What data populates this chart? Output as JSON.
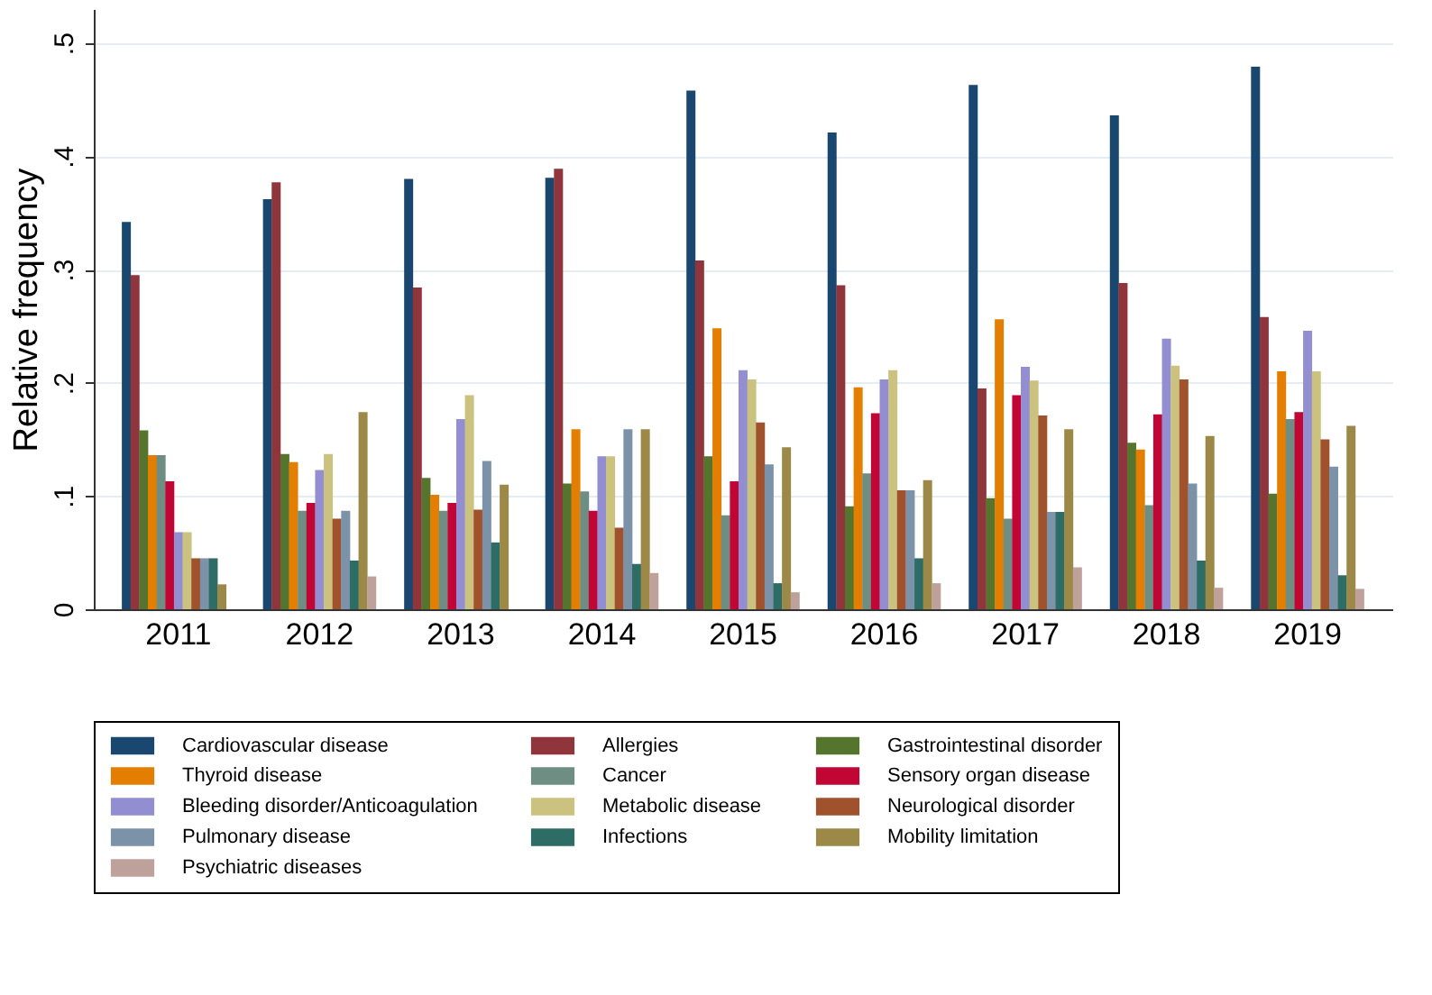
{
  "chart_data": {
    "type": "bar",
    "ylabel": "Relative frequency",
    "categories": [
      "2011",
      "2012",
      "2013",
      "2014",
      "2015",
      "2016",
      "2017",
      "2018",
      "2019"
    ],
    "ylim": [
      0,
      0.53
    ],
    "yticks": [
      0,
      {
        "value": 0.1,
        "label": ".1"
      },
      {
        "value": 0.2,
        "label": ".2"
      },
      {
        "value": 0.3,
        "label": ".3"
      },
      {
        "value": 0.4,
        "label": ".4"
      },
      {
        "value": 0.5,
        "label": ".5"
      }
    ],
    "grid": "y",
    "legend": "bottom",
    "series": [
      {
        "name": "Cardiovascular disease",
        "color": "#1a476f",
        "values": [
          0.342,
          0.362,
          0.38,
          0.381,
          0.458,
          0.421,
          0.463,
          0.436,
          0.479
        ]
      },
      {
        "name": "Allergies",
        "color": "#90353b",
        "values": [
          0.295,
          0.377,
          0.284,
          0.389,
          0.308,
          0.286,
          0.195,
          0.288,
          0.258
        ]
      },
      {
        "name": "Gastrointestinal disorder",
        "color": "#55752f",
        "values": [
          0.158,
          0.137,
          0.116,
          0.111,
          0.135,
          0.091,
          0.098,
          0.147,
          0.102
        ]
      },
      {
        "name": "Thyroid disease",
        "color": "#e37e00",
        "values": [
          0.136,
          0.13,
          0.101,
          0.159,
          0.248,
          0.196,
          0.256,
          0.141,
          0.21
        ]
      },
      {
        "name": "Cancer",
        "color": "#6e8e84",
        "values": [
          0.136,
          0.087,
          0.087,
          0.104,
          0.083,
          0.12,
          0.08,
          0.092,
          0.168
        ]
      },
      {
        "name": "Sensory organ disease",
        "color": "#c10534",
        "values": [
          0.113,
          0.094,
          0.094,
          0.087,
          0.113,
          0.173,
          0.189,
          0.172,
          0.174
        ]
      },
      {
        "name": "Bleeding disorder/Anticoagulation",
        "color": "#938dd2",
        "values": [
          0.068,
          0.123,
          0.168,
          0.135,
          0.211,
          0.203,
          0.214,
          0.239,
          0.246
        ]
      },
      {
        "name": "Metabolic disease",
        "color": "#cac27e",
        "values": [
          0.068,
          0.137,
          0.189,
          0.135,
          0.203,
          0.211,
          0.202,
          0.215,
          0.21
        ]
      },
      {
        "name": "Neurological disorder",
        "color": "#a0522d",
        "values": [
          0.045,
          0.08,
          0.088,
          0.072,
          0.165,
          0.105,
          0.171,
          0.203,
          0.15
        ]
      },
      {
        "name": "Pulmonary disease",
        "color": "#7b92a8",
        "values": [
          0.045,
          0.087,
          0.131,
          0.159,
          0.128,
          0.105,
          0.086,
          0.111,
          0.126
        ]
      },
      {
        "name": "Infections",
        "color": "#2d6d66",
        "values": [
          0.045,
          0.043,
          0.059,
          0.04,
          0.023,
          0.045,
          0.086,
          0.043,
          0.03
        ]
      },
      {
        "name": "Mobility limitation",
        "color": "#9c8847",
        "values": [
          0.022,
          0.174,
          0.11,
          0.159,
          0.143,
          0.114,
          0.159,
          0.153,
          0.162
        ]
      },
      {
        "name": "Psychiatric diseases",
        "color": "#bfa19c",
        "values": [
          null,
          0.029,
          null,
          0.032,
          0.015,
          0.023,
          0.037,
          0.019,
          0.018
        ]
      }
    ]
  }
}
